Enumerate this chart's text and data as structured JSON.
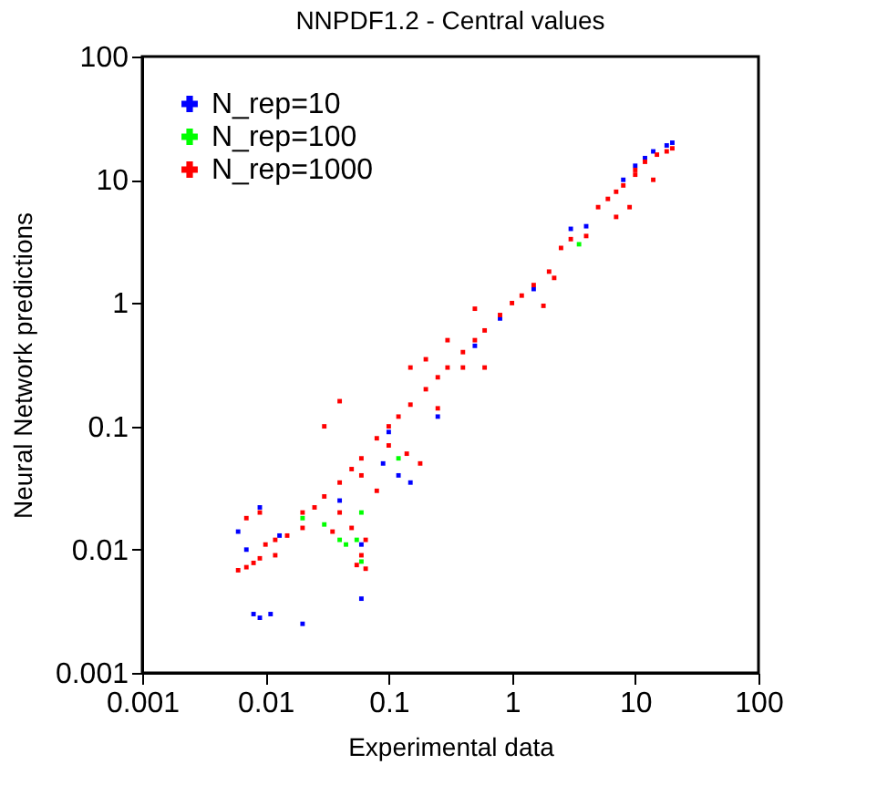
{
  "chart_data": {
    "type": "scatter",
    "title": "NNPDF1.2 - Central values",
    "xlabel": "Experimental data",
    "ylabel": "Neural Network predictions",
    "log": "xy",
    "grid": false,
    "legend": "top left",
    "marker": "square",
    "xlim": [
      0.001,
      100
    ],
    "ylim": [
      0.001,
      100
    ],
    "xticks": [
      0.001,
      0.01,
      0.1,
      1,
      10,
      100
    ],
    "yticks": [
      0.001,
      0.01,
      0.1,
      1,
      10,
      100
    ],
    "series": [
      {
        "name": "N_rep=10",
        "color": "#0000ff",
        "x": [
          0.006,
          0.008,
          0.009,
          0.011,
          0.02,
          0.06,
          0.007,
          0.009,
          0.013,
          0.1,
          0.5,
          0.8,
          1.5,
          0.25,
          0.06,
          0.12,
          0.09,
          0.15,
          0.04,
          3,
          4,
          10,
          14,
          18,
          20,
          8,
          12
        ],
        "values": [
          0.014,
          0.003,
          0.0028,
          0.003,
          0.0025,
          0.004,
          0.01,
          0.022,
          0.013,
          0.09,
          0.45,
          0.75,
          1.3,
          0.12,
          0.011,
          0.04,
          0.05,
          0.035,
          0.025,
          4,
          4.2,
          13,
          17,
          19,
          20,
          10,
          15
        ]
      },
      {
        "name": "N_rep=100",
        "color": "#00ff00",
        "x": [
          0.03,
          0.045,
          0.055,
          0.06,
          0.12,
          0.06,
          0.02,
          0.04,
          3.5
        ],
        "values": [
          0.016,
          0.011,
          0.012,
          0.008,
          0.055,
          0.02,
          0.018,
          0.012,
          3.0
        ]
      },
      {
        "name": "N_rep=1000",
        "color": "#ff0000",
        "x": [
          0.006,
          0.007,
          0.008,
          0.009,
          0.01,
          0.012,
          0.015,
          0.02,
          0.025,
          0.03,
          0.04,
          0.05,
          0.06,
          0.08,
          0.1,
          0.12,
          0.15,
          0.2,
          0.25,
          0.3,
          0.4,
          0.5,
          0.6,
          0.8,
          1.0,
          1.2,
          1.5,
          2.0,
          2.2,
          1.8,
          0.3,
          0.5,
          0.25,
          0.4,
          0.06,
          0.08,
          0.1,
          0.14,
          0.18,
          0.04,
          0.05,
          0.06,
          0.065,
          0.007,
          0.009,
          0.012,
          0.03,
          0.04,
          0.02,
          0.065,
          0.035,
          0.15,
          0.2,
          0.6,
          2.5,
          3,
          4,
          5,
          6,
          7,
          8,
          10,
          12,
          15,
          18,
          20,
          9,
          7,
          10,
          14,
          0.055
        ],
        "values": [
          0.0068,
          0.0072,
          0.0078,
          0.0085,
          0.011,
          0.012,
          0.013,
          0.02,
          0.022,
          0.027,
          0.035,
          0.045,
          0.055,
          0.08,
          0.1,
          0.12,
          0.15,
          0.2,
          0.25,
          0.3,
          0.4,
          0.5,
          0.6,
          0.8,
          1.0,
          1.15,
          1.4,
          1.8,
          1.6,
          0.95,
          0.5,
          0.9,
          0.14,
          0.3,
          0.04,
          0.03,
          0.07,
          0.06,
          0.05,
          0.02,
          0.015,
          0.009,
          0.007,
          0.018,
          0.02,
          0.009,
          0.1,
          0.16,
          0.015,
          0.012,
          0.014,
          0.3,
          0.35,
          0.3,
          2.8,
          3.3,
          3.5,
          6,
          7,
          8,
          9,
          11,
          14,
          16,
          17,
          18,
          6,
          5,
          12,
          10,
          0.0075
        ]
      }
    ]
  }
}
